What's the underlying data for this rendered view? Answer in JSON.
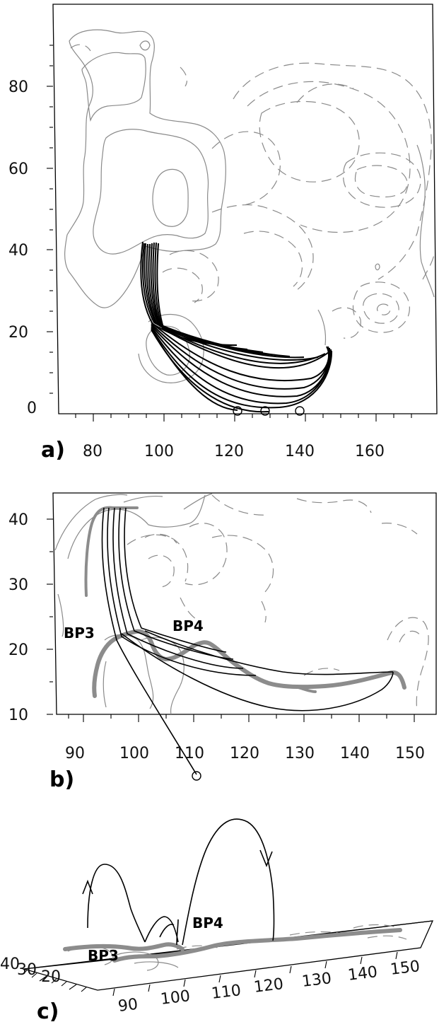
{
  "panel_a": {
    "label": "a)",
    "x_ticks": [
      "80",
      "100",
      "120",
      "140",
      "160"
    ],
    "y_ticks": [
      "0",
      "20",
      "40",
      "60",
      "80"
    ]
  },
  "panel_b": {
    "label": "b)",
    "x_ticks": [
      "90",
      "100",
      "110",
      "120",
      "130",
      "140",
      "150"
    ],
    "y_ticks": [
      "10",
      "20",
      "30",
      "40"
    ],
    "annotations": [
      "BP3",
      "BP4"
    ]
  },
  "panel_c": {
    "label": "c)",
    "x_ticks": [
      "90",
      "100",
      "110",
      "120",
      "130",
      "140",
      "150"
    ],
    "y_ticks": [
      "20",
      "30",
      "40"
    ],
    "annotations": [
      "BP3",
      "BP4"
    ]
  }
}
